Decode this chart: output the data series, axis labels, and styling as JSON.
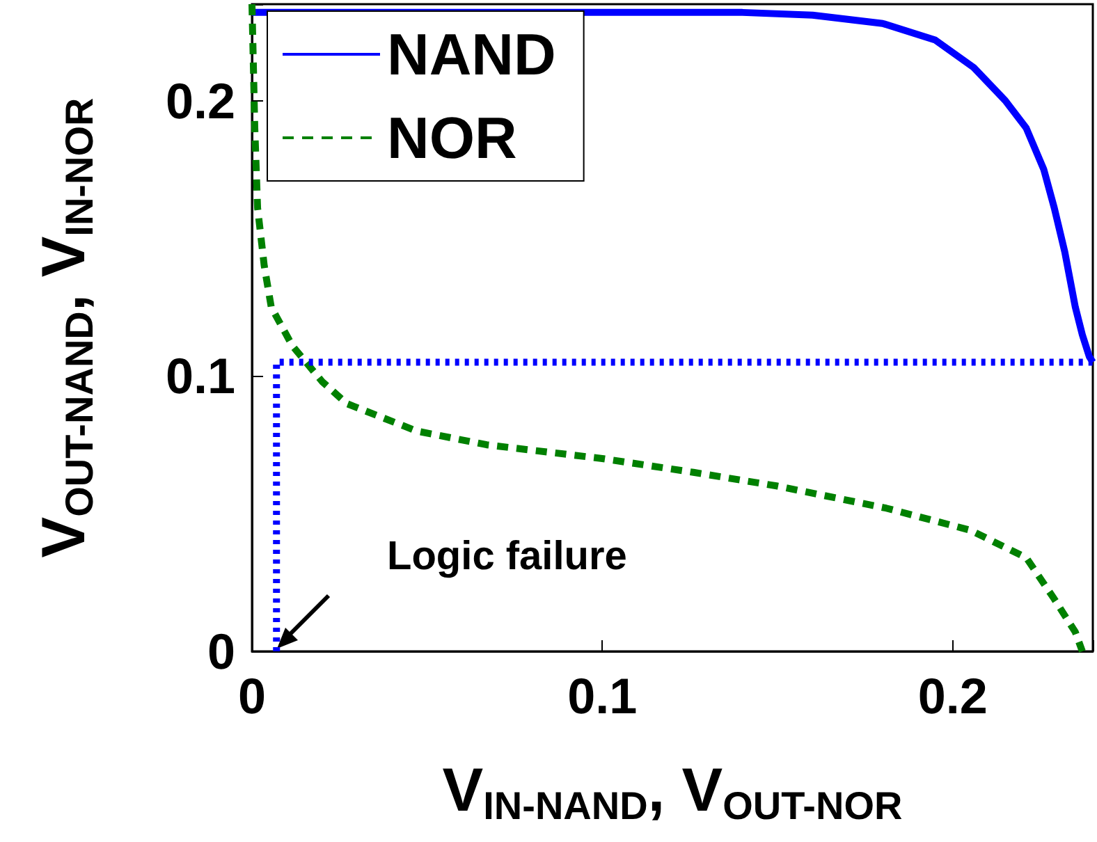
{
  "chart_data": {
    "type": "line",
    "xlabel": "V$_{IN-NAND}$, V$_{OUT-NOR}$",
    "ylabel": "V$_{OUT-NAND}$, V$_{IN-NOR}$",
    "xlim": [
      0,
      0.24
    ],
    "ylim": [
      0,
      0.235
    ],
    "xticks": [
      0,
      0.1,
      0.2
    ],
    "yticks": [
      0,
      0.1,
      0.2
    ],
    "grid": false,
    "legend": "top left",
    "marker": "none",
    "annotations": [
      "Logic failure"
    ],
    "series": [
      {
        "name": "NAND",
        "color": "#0000ff",
        "line_style": "solid",
        "x": [
          0,
          0.1,
          0.14,
          0.16,
          0.18,
          0.195,
          0.206,
          0.215,
          0.221,
          0.226,
          0.229,
          0.232,
          0.235,
          0.237,
          0.239,
          0.24
        ],
        "values": [
          0.232,
          0.232,
          0.232,
          0.231,
          0.228,
          0.222,
          0.212,
          0.2,
          0.19,
          0.175,
          0.161,
          0.145,
          0.125,
          0.115,
          0.107,
          0.105
        ]
      },
      {
        "name": "NOR",
        "color": "#008000",
        "line_style": "dashed",
        "x": [
          0,
          0.0008,
          0.0016,
          0.0035,
          0.0055,
          0.0115,
          0.02,
          0.027,
          0.037,
          0.047,
          0.067,
          0.1,
          0.126,
          0.15,
          0.181,
          0.205,
          0.221,
          0.229,
          0.235,
          0.237
        ],
        "values": [
          0.235,
          0.19,
          0.161,
          0.14,
          0.125,
          0.111,
          0.098,
          0.09,
          0.085,
          0.08,
          0.075,
          0.07,
          0.065,
          0.06,
          0.052,
          0.044,
          0.034,
          0.019,
          0.007,
          0
        ]
      },
      {
        "color": "#0000ff",
        "line_style": "dotted",
        "x": [
          0.007,
          0.007,
          0.24
        ],
        "values": [
          0,
          0.105,
          0.105
        ]
      }
    ]
  }
}
